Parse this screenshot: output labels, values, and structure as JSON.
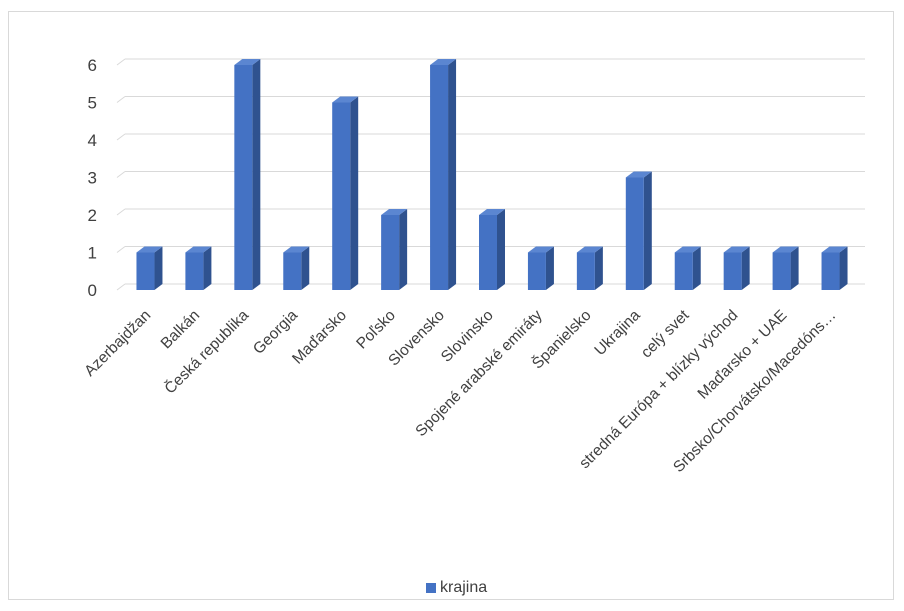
{
  "chart_data": {
    "type": "bar",
    "style": "3d-clustered-column",
    "categories": [
      "Azerbajdžan",
      "Balkán",
      "Česká republika",
      "Georgia",
      "Maďarsko",
      "Poľsko",
      "Slovensko",
      "Slovinsko",
      "Spojené arabské emiráty",
      "Španielsko",
      "Ukrajina",
      "celý svet",
      "stredná Európa + blízky východ",
      "Maďarsko + UAE",
      "Srbsko/Chorvátsko/Macedóns…"
    ],
    "series": [
      {
        "name": "krajina",
        "values": [
          1,
          1,
          6,
          1,
          5,
          2,
          6,
          2,
          1,
          1,
          3,
          1,
          1,
          1,
          1
        ]
      }
    ],
    "yticks": [
      0,
      1,
      2,
      3,
      4,
      5,
      6
    ],
    "ylim": [
      0,
      6.6
    ],
    "grid": true,
    "legend": "bottom",
    "colors": {
      "bar_front": "#4472c4",
      "bar_side": "#2f528f",
      "bar_top": "#5b86d1",
      "grid": "#d9d9d9",
      "text": "#404040"
    }
  }
}
